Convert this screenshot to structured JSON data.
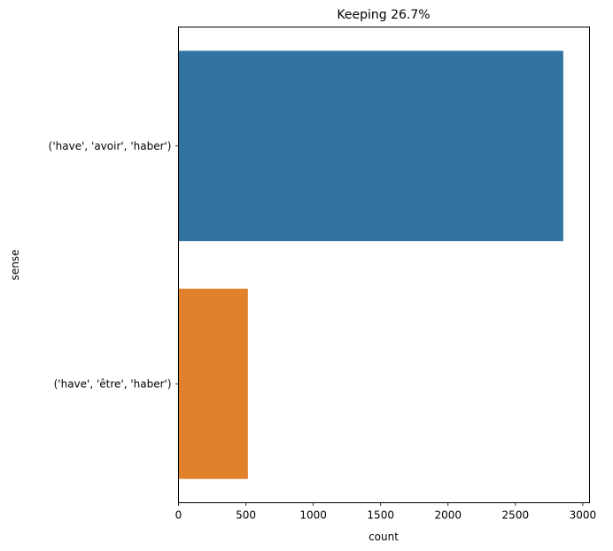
{
  "chart_data": {
    "type": "bar",
    "orientation": "horizontal",
    "title": "Keeping 26.7%",
    "xlabel": "count",
    "ylabel": "sense",
    "categories": [
      "('have', 'avoir', 'haber')",
      "('have', 'être', 'haber')"
    ],
    "values": [
      2855,
      515
    ],
    "colors": [
      "#3274a1",
      "#e1812c"
    ],
    "xlim": [
      0,
      3050
    ],
    "xticks": [
      0,
      500,
      1000,
      1500,
      2000,
      2500,
      3000
    ],
    "xtick_labels": [
      "0",
      "500",
      "1000",
      "1500",
      "2000",
      "2500",
      "3000"
    ],
    "grid": false,
    "legend": "none"
  }
}
